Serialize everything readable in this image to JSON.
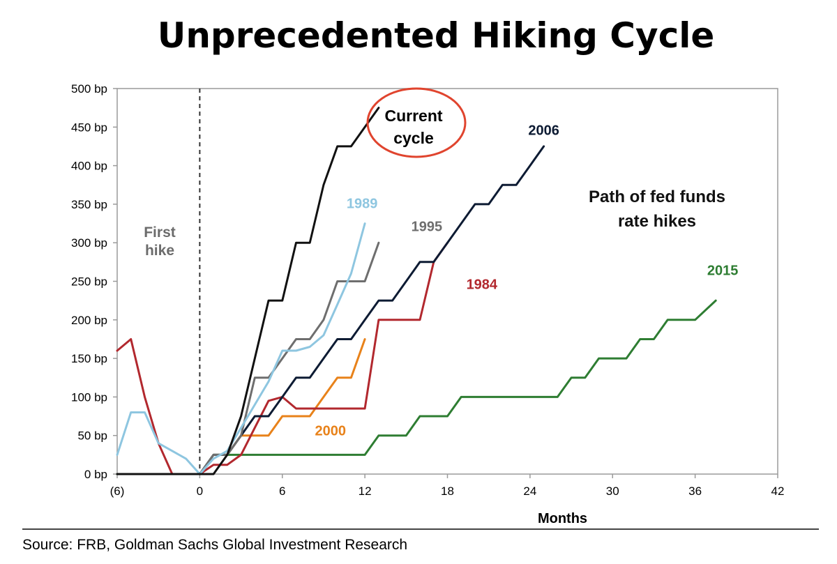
{
  "title": "Unprecedented Hiking Cycle",
  "source": "Source: FRB, Goldman Sachs Global Investment Research",
  "chart_data": {
    "type": "line",
    "title": "Unprecedented Hiking Cycle",
    "xlabel": "Months",
    "ylabel": "",
    "xlim": [
      -6,
      42
    ],
    "ylim": [
      0,
      500
    ],
    "xticks": [
      -6,
      0,
      6,
      12,
      18,
      24,
      30,
      36,
      42
    ],
    "xtick_labels": [
      "(6)",
      "0",
      "6",
      "12",
      "18",
      "24",
      "30",
      "36",
      "42"
    ],
    "yticks": [
      0,
      50,
      100,
      150,
      200,
      250,
      300,
      350,
      400,
      450,
      500
    ],
    "ytick_labels": [
      "0 bp",
      "50 bp",
      "100 bp",
      "150 bp",
      "200 bp",
      "250 bp",
      "300 bp",
      "350 bp",
      "400 bp",
      "450 bp",
      "500 bp"
    ],
    "grid": false,
    "annotations": {
      "first_hike": [
        "First",
        "hike"
      ],
      "path_label": [
        "Path of fed funds",
        "rate hikes"
      ]
    },
    "series": [
      {
        "name": "2015",
        "color": "#2e7d32",
        "x": [
          -6,
          0,
          1,
          2,
          12,
          13,
          14,
          15,
          16,
          17,
          18,
          19,
          26,
          27,
          28,
          29,
          30,
          31,
          32,
          33,
          34,
          35,
          36,
          37.5
        ],
        "y": [
          0,
          0,
          25,
          25,
          25,
          50,
          50,
          50,
          75,
          75,
          75,
          100,
          100,
          125,
          125,
          150,
          150,
          150,
          175,
          175,
          200,
          200,
          200,
          225
        ]
      },
      {
        "name": "2000",
        "color": "#e8821a",
        "x": [
          2,
          3,
          4,
          5,
          6,
          7,
          8,
          9,
          10,
          11,
          12
        ],
        "y": [
          25,
          50,
          50,
          50,
          75,
          75,
          75,
          100,
          125,
          125,
          175
        ]
      },
      {
        "name": "1984",
        "color": "#b2282e",
        "x": [
          -6,
          -5,
          -4,
          -3,
          -2,
          -1,
          0,
          1,
          2,
          3,
          4,
          5,
          6,
          7,
          8,
          9,
          10,
          11,
          12,
          13,
          14,
          15,
          16,
          17,
          18
        ],
        "y": [
          160,
          175,
          100,
          40,
          0,
          0,
          0,
          12,
          12,
          25,
          60,
          95,
          100,
          85,
          85,
          85,
          85,
          85,
          85,
          200,
          200,
          200,
          200,
          275,
          300
        ]
      },
      {
        "name": "2006",
        "color": "#0d1b33",
        "x": [
          0,
          1,
          2,
          3,
          4,
          5,
          6,
          7,
          8,
          9,
          10,
          11,
          12,
          13,
          14,
          15,
          16,
          17,
          18,
          19,
          20,
          21,
          22,
          23,
          24,
          25
        ],
        "y": [
          0,
          25,
          25,
          50,
          75,
          75,
          100,
          125,
          125,
          150,
          175,
          175,
          200,
          225,
          225,
          250,
          275,
          275,
          300,
          325,
          350,
          350,
          375,
          375,
          400,
          425
        ]
      },
      {
        "name": "1995",
        "color": "#6e6e6e",
        "x": [
          0,
          1,
          2,
          3,
          4,
          5,
          6,
          7,
          8,
          9,
          10,
          11,
          12,
          13
        ],
        "y": [
          0,
          25,
          25,
          50,
          125,
          125,
          150,
          175,
          175,
          200,
          250,
          250,
          250,
          300
        ]
      },
      {
        "name": "1989",
        "color": "#8ec6e0",
        "x": [
          -6,
          -5,
          -4,
          -3,
          -2,
          -1,
          0,
          1,
          2,
          3,
          4,
          5,
          6,
          7,
          8,
          9,
          10,
          11,
          12
        ],
        "y": [
          25,
          80,
          80,
          40,
          30,
          20,
          0,
          20,
          30,
          60,
          90,
          120,
          160,
          160,
          165,
          180,
          220,
          260,
          325
        ]
      },
      {
        "name": "Current cycle",
        "color": "#111111",
        "x": [
          -6,
          0,
          1,
          2,
          3,
          4,
          5,
          6,
          7,
          8,
          9,
          10,
          11,
          12,
          13
        ],
        "y": [
          0,
          0,
          0,
          25,
          75,
          150,
          225,
          225,
          300,
          300,
          375,
          425,
          425,
          450,
          475
        ]
      }
    ],
    "label_positions": {
      "2015": [
        38,
        258
      ],
      "2000": [
        9.5,
        50
      ],
      "1984": [
        20.5,
        240
      ],
      "2006": [
        25,
        440
      ],
      "1995": [
        16.5,
        315
      ],
      "1989": [
        11.8,
        345
      ]
    }
  }
}
